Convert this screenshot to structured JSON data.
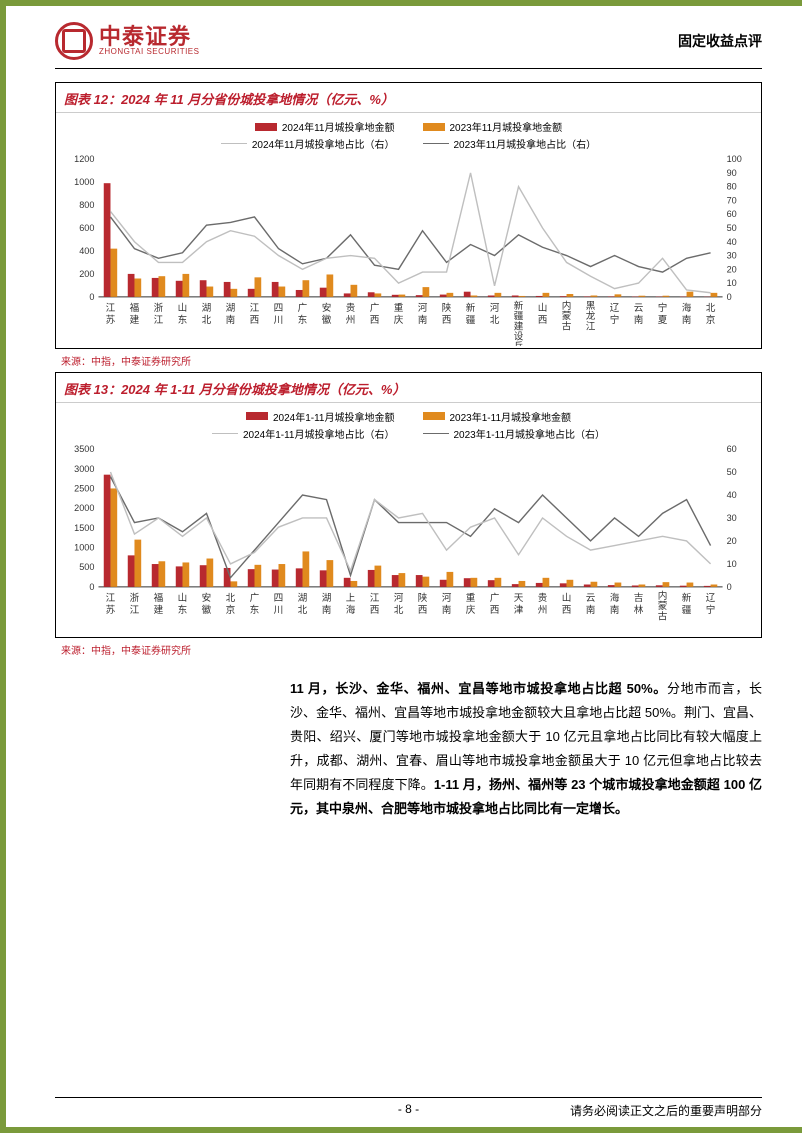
{
  "header": {
    "logo_cn": "中泰证券",
    "logo_en": "ZHONGTAI SECURITIES",
    "doc_category": "固定收益点评"
  },
  "chart12": {
    "title": "图表 12：2024 年 11 月分省份城投拿地情况（亿元、%）",
    "legend": {
      "s1": "2024年11月城投拿地金额",
      "s2": "2023年11月城投拿地金额",
      "s3": "2024年11月城投拿地占比（右）",
      "s4": "2023年11月城投拿地占比（右）"
    },
    "colors": {
      "bar_2024": "#b8292f",
      "bar_2023": "#e08a1e",
      "line_2024": "#bfbfbf",
      "line_2023": "#6b6b6b",
      "grid": "#e0e0e0",
      "axis": "#333333",
      "bg": "#ffffff"
    },
    "y_left": {
      "min": 0,
      "max": 1200,
      "step": 200
    },
    "y_right": {
      "min": 0,
      "max": 100,
      "step": 10
    },
    "categories": [
      "江苏",
      "福建",
      "浙江",
      "山东",
      "湖北",
      "湖南",
      "江西",
      "四川",
      "广东",
      "安徽",
      "贵州",
      "广西",
      "重庆",
      "河南",
      "陕西",
      "新疆",
      "河北",
      "新疆建设兵团",
      "山西",
      "内蒙古",
      "黑龙江",
      "辽宁",
      "云南",
      "宁夏",
      "海南",
      "北京"
    ],
    "bar2024": [
      990,
      200,
      165,
      140,
      145,
      130,
      70,
      130,
      60,
      80,
      30,
      40,
      18,
      15,
      20,
      45,
      12,
      12,
      8,
      6,
      4,
      4,
      3,
      3,
      3,
      2
    ],
    "bar2023": [
      420,
      160,
      180,
      200,
      90,
      70,
      170,
      90,
      145,
      195,
      105,
      30,
      20,
      85,
      35,
      12,
      35,
      8,
      35,
      25,
      12,
      22,
      10,
      10,
      45,
      35
    ],
    "line2024": [
      62,
      40,
      25,
      25,
      40,
      48,
      44,
      30,
      20,
      28,
      30,
      28,
      10,
      18,
      18,
      90,
      8,
      80,
      50,
      25,
      15,
      6,
      10,
      28,
      5,
      3
    ],
    "line2023": [
      58,
      35,
      28,
      32,
      52,
      54,
      58,
      35,
      24,
      28,
      45,
      23,
      20,
      48,
      25,
      38,
      30,
      45,
      36,
      30,
      22,
      30,
      22,
      18,
      28,
      32
    ],
    "source": "来源：中指，中泰证券研究所"
  },
  "chart13": {
    "title": "图表 13：2024 年 1-11 月分省份城投拿地情况（亿元、%）",
    "legend": {
      "s1": "2024年1-11月城投拿地金额",
      "s2": "2023年1-11月城投拿地金额",
      "s3": "2024年1-11月城投拿地占比（右）",
      "s4": "2023年1-11月城投拿地占比（右）"
    },
    "colors": {
      "bar_2024": "#b8292f",
      "bar_2023": "#e08a1e",
      "line_2024": "#bfbfbf",
      "line_2023": "#6b6b6b",
      "grid": "#e0e0e0",
      "axis": "#333333",
      "bg": "#ffffff"
    },
    "y_left": {
      "min": 0,
      "max": 3500,
      "step": 500
    },
    "y_right": {
      "min": 0,
      "max": 60,
      "step": 10
    },
    "categories": [
      "江苏",
      "浙江",
      "福建",
      "山东",
      "安徽",
      "北京",
      "广东",
      "四川",
      "湖北",
      "湖南",
      "上海",
      "江西",
      "河北",
      "陕西",
      "河南",
      "重庆",
      "广西",
      "天津",
      "贵州",
      "山西",
      "云南",
      "海南",
      "吉林",
      "内蒙古",
      "新疆",
      "辽宁"
    ],
    "bar2024": [
      2850,
      800,
      580,
      520,
      550,
      480,
      450,
      440,
      470,
      420,
      230,
      430,
      300,
      300,
      180,
      220,
      170,
      70,
      100,
      90,
      60,
      45,
      35,
      40,
      30,
      25
    ],
    "bar2023": [
      2500,
      1200,
      650,
      620,
      720,
      140,
      560,
      580,
      900,
      680,
      150,
      540,
      350,
      260,
      380,
      230,
      230,
      150,
      230,
      180,
      130,
      110,
      60,
      120,
      110,
      60
    ],
    "line2024": [
      50,
      23,
      30,
      22,
      30,
      10,
      15,
      26,
      30,
      30,
      7,
      38,
      30,
      32,
      16,
      26,
      30,
      14,
      30,
      22,
      16,
      18,
      20,
      22,
      20,
      10
    ],
    "line2023": [
      48,
      28,
      30,
      24,
      32,
      4,
      16,
      28,
      40,
      38,
      5,
      38,
      28,
      28,
      28,
      22,
      34,
      28,
      40,
      30,
      20,
      30,
      22,
      32,
      38,
      18
    ],
    "source": "来源：中指，中泰证券研究所"
  },
  "body_para": {
    "b1": "11 月，长沙、金华、福州、宜昌等地市城投拿地占比超 50%。",
    "t1": "分地市而言，长沙、金华、福州、宜昌等地市城投拿地金额较大且拿地占比超 50%。荆门、宜昌、贵阳、绍兴、厦门等地市城投拿地金额大于 10 亿元且拿地占比同比有较大幅度上升，成都、湖州、宜春、眉山等地市城投拿地金额虽大于 10 亿元但拿地占比较去年同期有不同程度下降。",
    "b2": "1-11 月，扬州、福州等 23 个城市城投拿地金额超 100 亿元，其中泉州、合肥等地市城投拿地占比同比有一定增长。"
  },
  "footer": {
    "page": "- 8 -",
    "disclaimer": "请务必阅读正文之后的重要声明部分"
  }
}
